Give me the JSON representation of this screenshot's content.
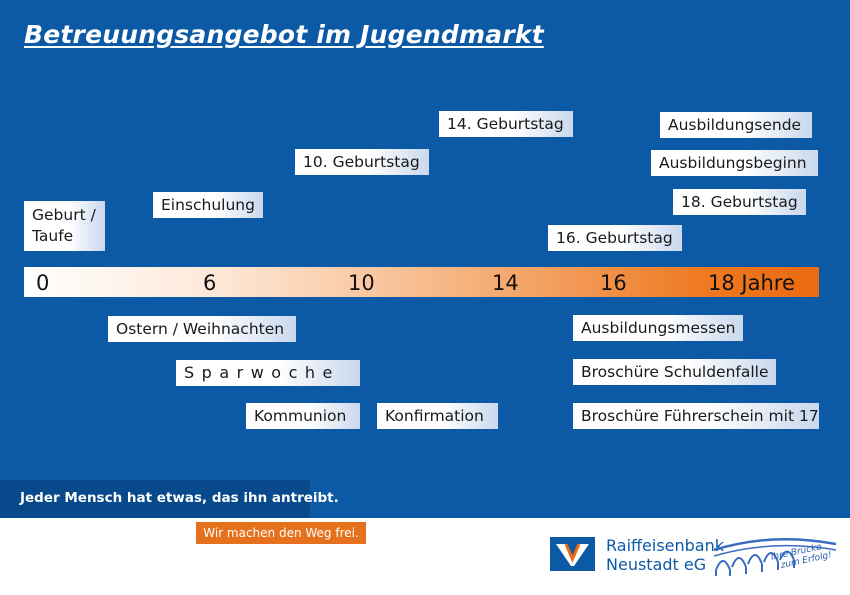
{
  "title": "Betreuungsangebot im Jugendmarkt",
  "timeline": {
    "ticks": [
      "0",
      "6",
      "10",
      "14",
      "16",
      "18 Jahre"
    ]
  },
  "events_above": {
    "geburt": "Geburt / Taufe",
    "einschulung": "Einschulung",
    "geburtstag_10": "10. Geburtstag",
    "geburtstag_14": "14. Geburtstag",
    "geburtstag_16": "16. Geburtstag",
    "geburtstag_18": "18. Geburtstag",
    "ausbildungsbeginn": "Ausbildungsbeginn",
    "ausbildungsende": "Ausbildungsende"
  },
  "offers_below": {
    "ostern": "Ostern / Weihnachten",
    "sparwoche": "Sparwoche",
    "kommunion": "Kommunion",
    "konfirmation": "Konfirmation",
    "ausbildungsmessen": "Ausbildungsmessen",
    "schuldenfalle": "Broschüre Schuldenfalle",
    "fuehrerschein": "Broschüre Führerschein mit 17"
  },
  "footer": {
    "slogan": "Jeder Mensch hat etwas, das ihn antreibt.",
    "claim": "Wir machen den Weg frei.",
    "bank_line1": "Raiffeisenbank",
    "bank_line2": "Neustadt eG",
    "motto_line1": "Ihre Brücke",
    "motto_line2": "zum Erfolg!"
  },
  "colors": {
    "background_blue": "#0c5aa6",
    "accent_orange": "#e96a10",
    "slogan_blue": "#08498c"
  }
}
